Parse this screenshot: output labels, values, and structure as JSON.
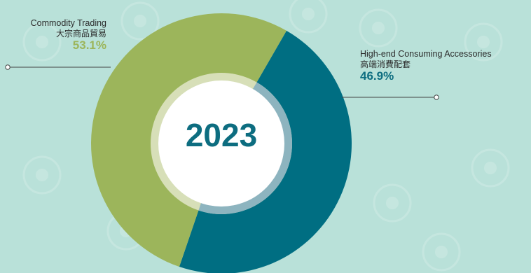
{
  "chart_data": {
    "type": "pie",
    "center_label": "2023",
    "slices": [
      {
        "name_en": "Commodity Trading",
        "name_zh": "大宗商品貿易",
        "value": 53.1,
        "value_label": "53.1%",
        "color": "#9cb55b"
      },
      {
        "name_en": "High-end Consuming Accessories",
        "name_zh": "高端消費配套",
        "value": 46.9,
        "value_label": "46.9%",
        "color": "#006e82"
      }
    ]
  },
  "colors": {
    "background": "#b9e1d9",
    "inner_ring_light": "#d7dfb8",
    "inner_ring_blue": "#8db4bf",
    "leader_line": "#444444"
  }
}
